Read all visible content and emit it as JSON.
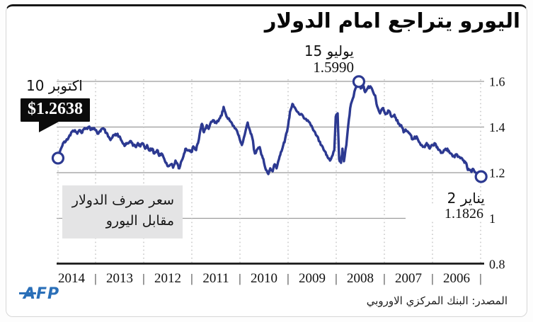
{
  "title": "اليورو يتراجع امام الدولار",
  "source": "المصدر: البنك المركزي الاوروبي",
  "logo": "AFP",
  "annotations": {
    "peak": {
      "date_label": "15 يوليو",
      "value_label": "1.5990"
    },
    "october": {
      "date_label": "10 اكتوبر",
      "value_label": "$1.2638"
    },
    "january": {
      "date_label": "2 يناير",
      "value_label": "1.1826"
    },
    "series_label_line1": "سعر صرف الدولار",
    "series_label_line2": "مقابل اليورو"
  },
  "colors": {
    "line": "#2c3991",
    "grid": "#9b9b9b",
    "dash": "#bdbdbd",
    "axis": "#191919",
    "callout_bg": "#0b0b0b",
    "label_box_bg": "#e4e4e5",
    "logo_blue": "#2a6fb8"
  },
  "chart_data": {
    "type": "line",
    "title": "اليورو يتراجع امام الدولار",
    "series_name": "EUR/USD exchange rate",
    "x_axis": {
      "direction": "reversed_time_right_to_older",
      "year_labels": [
        "2014",
        "2013",
        "2012",
        "2011",
        "2010",
        "2009",
        "2008",
        "2007",
        "2006"
      ]
    },
    "y_axis": {
      "ticks": [
        {
          "v": 1.6,
          "label": "1.6"
        },
        {
          "v": 1.4,
          "label": "1.4"
        },
        {
          "v": 1.2,
          "label": "1.2"
        },
        {
          "v": 1.0,
          "label": "1"
        },
        {
          "v": 0.8,
          "label": "0.8"
        }
      ],
      "range": [
        0.8,
        1.65
      ],
      "grid": true
    },
    "grid_dash_dates": [
      2014.78,
      2014,
      2013,
      2012,
      2011,
      2010,
      2009,
      2008,
      2007,
      2006
    ],
    "markers": [
      {
        "date": 2014.78,
        "rate": 1.2638
      },
      {
        "date": 2008.53,
        "rate": 1.599
      },
      {
        "date": 2005.99,
        "rate": 1.1826
      }
    ],
    "points": [
      [
        2014.78,
        1.2638
      ],
      [
        2014.74,
        1.293
      ],
      [
        2014.69,
        1.318
      ],
      [
        2014.65,
        1.336
      ],
      [
        2014.6,
        1.346
      ],
      [
        2014.54,
        1.364
      ],
      [
        2014.49,
        1.38
      ],
      [
        2014.43,
        1.386
      ],
      [
        2014.38,
        1.371
      ],
      [
        2014.34,
        1.386
      ],
      [
        2014.29,
        1.374
      ],
      [
        2014.25,
        1.389
      ],
      [
        2014.19,
        1.395
      ],
      [
        2014.13,
        1.402
      ],
      [
        2014.09,
        1.389
      ],
      [
        2014.04,
        1.395
      ],
      [
        2014.0,
        1.386
      ],
      [
        2013.96,
        1.371
      ],
      [
        2013.91,
        1.383
      ],
      [
        2013.87,
        1.392
      ],
      [
        2013.82,
        1.389
      ],
      [
        2013.78,
        1.374
      ],
      [
        2013.74,
        1.358
      ],
      [
        2013.69,
        1.343
      ],
      [
        2013.65,
        1.355
      ],
      [
        2013.6,
        1.364
      ],
      [
        2013.56,
        1.367
      ],
      [
        2013.51,
        1.358
      ],
      [
        2013.47,
        1.343
      ],
      [
        2013.43,
        1.327
      ],
      [
        2013.38,
        1.321
      ],
      [
        2013.34,
        1.33
      ],
      [
        2013.29,
        1.336
      ],
      [
        2013.25,
        1.33
      ],
      [
        2013.21,
        1.321
      ],
      [
        2013.16,
        1.312
      ],
      [
        2013.12,
        1.33
      ],
      [
        2013.07,
        1.315
      ],
      [
        2013.01,
        1.327
      ],
      [
        2012.97,
        1.305
      ],
      [
        2012.93,
        1.321
      ],
      [
        2012.87,
        1.296
      ],
      [
        2012.82,
        1.305
      ],
      [
        2012.78,
        1.284
      ],
      [
        2012.72,
        1.299
      ],
      [
        2012.68,
        1.274
      ],
      [
        2012.63,
        1.284
      ],
      [
        2012.57,
        1.259
      ],
      [
        2012.53,
        1.243
      ],
      [
        2012.49,
        1.228
      ],
      [
        2012.43,
        1.237
      ],
      [
        2012.39,
        1.222
      ],
      [
        2012.34,
        1.253
      ],
      [
        2012.28,
        1.228
      ],
      [
        2012.26,
        1.219
      ],
      [
        2012.21,
        1.253
      ],
      [
        2012.16,
        1.284
      ],
      [
        2012.12,
        1.305
      ],
      [
        2012.06,
        1.299
      ],
      [
        2012.01,
        1.29
      ],
      [
        2011.97,
        1.315
      ],
      [
        2011.91,
        1.299
      ],
      [
        2011.87,
        1.33
      ],
      [
        2011.82,
        1.389
      ],
      [
        2011.79,
        1.414
      ],
      [
        2011.75,
        1.377
      ],
      [
        2011.69,
        1.408
      ],
      [
        2011.65,
        1.392
      ],
      [
        2011.6,
        1.423
      ],
      [
        2011.54,
        1.429
      ],
      [
        2011.49,
        1.417
      ],
      [
        2011.43,
        1.436
      ],
      [
        2011.38,
        1.451
      ],
      [
        2011.34,
        1.488
      ],
      [
        2011.29,
        1.454
      ],
      [
        2011.25,
        1.436
      ],
      [
        2011.19,
        1.423
      ],
      [
        2011.13,
        1.405
      ],
      [
        2011.06,
        1.383
      ],
      [
        2011.0,
        1.343
      ],
      [
        2010.96,
        1.321
      ],
      [
        2010.9,
        1.367
      ],
      [
        2010.84,
        1.42
      ],
      [
        2010.79,
        1.383
      ],
      [
        2010.75,
        1.358
      ],
      [
        2010.69,
        1.284
      ],
      [
        2010.63,
        1.305
      ],
      [
        2010.59,
        1.312
      ],
      [
        2010.54,
        1.274
      ],
      [
        2010.5,
        1.243
      ],
      [
        2010.46,
        1.212
      ],
      [
        2010.41,
        1.194
      ],
      [
        2010.37,
        1.219
      ],
      [
        2010.32,
        1.206
      ],
      [
        2010.28,
        1.237
      ],
      [
        2010.24,
        1.219
      ],
      [
        2010.19,
        1.259
      ],
      [
        2010.15,
        1.29
      ],
      [
        2010.1,
        1.321
      ],
      [
        2010.06,
        1.349
      ],
      [
        2010.0,
        1.405
      ],
      [
        2009.96,
        1.467
      ],
      [
        2009.91,
        1.501
      ],
      [
        2009.87,
        1.488
      ],
      [
        2009.81,
        1.467
      ],
      [
        2009.75,
        1.454
      ],
      [
        2009.69,
        1.448
      ],
      [
        2009.63,
        1.436
      ],
      [
        2009.57,
        1.423
      ],
      [
        2009.51,
        1.405
      ],
      [
        2009.46,
        1.383
      ],
      [
        2009.4,
        1.361
      ],
      [
        2009.34,
        1.336
      ],
      [
        2009.28,
        1.312
      ],
      [
        2009.22,
        1.29
      ],
      [
        2009.18,
        1.268
      ],
      [
        2009.13,
        1.253
      ],
      [
        2009.09,
        1.271
      ],
      [
        2009.04,
        1.299
      ],
      [
        2009.01,
        1.445
      ],
      [
        2008.97,
        1.46
      ],
      [
        2008.94,
        1.259
      ],
      [
        2008.9,
        1.243
      ],
      [
        2008.87,
        1.305
      ],
      [
        2008.84,
        1.25
      ],
      [
        2008.79,
        1.321
      ],
      [
        2008.75,
        1.408
      ],
      [
        2008.71,
        1.482
      ],
      [
        2008.66,
        1.522
      ],
      [
        2008.6,
        1.569
      ],
      [
        2008.56,
        1.591
      ],
      [
        2008.53,
        1.599
      ],
      [
        2008.49,
        1.569
      ],
      [
        2008.44,
        1.581
      ],
      [
        2008.4,
        1.553
      ],
      [
        2008.35,
        1.569
      ],
      [
        2008.29,
        1.578
      ],
      [
        2008.25,
        1.563
      ],
      [
        2008.19,
        1.538
      ],
      [
        2008.15,
        1.491
      ],
      [
        2008.09,
        1.46
      ],
      [
        2008.04,
        1.482
      ],
      [
        2008.0,
        1.467
      ],
      [
        2007.96,
        1.46
      ],
      [
        2007.9,
        1.47
      ],
      [
        2007.85,
        1.445
      ],
      [
        2007.79,
        1.454
      ],
      [
        2007.75,
        1.429
      ],
      [
        2007.69,
        1.414
      ],
      [
        2007.65,
        1.408
      ],
      [
        2007.6,
        1.377
      ],
      [
        2007.56,
        1.389
      ],
      [
        2007.5,
        1.377
      ],
      [
        2007.46,
        1.367
      ],
      [
        2007.41,
        1.346
      ],
      [
        2007.37,
        1.358
      ],
      [
        2007.31,
        1.349
      ],
      [
        2007.26,
        1.33
      ],
      [
        2007.22,
        1.321
      ],
      [
        2007.16,
        1.312
      ],
      [
        2007.12,
        1.33
      ],
      [
        2007.07,
        1.308
      ],
      [
        2007.03,
        1.318
      ],
      [
        2006.99,
        1.321
      ],
      [
        2006.94,
        1.327
      ],
      [
        2006.9,
        1.312
      ],
      [
        2006.84,
        1.296
      ],
      [
        2006.79,
        1.287
      ],
      [
        2006.75,
        1.299
      ],
      [
        2006.69,
        1.305
      ],
      [
        2006.65,
        1.29
      ],
      [
        2006.6,
        1.281
      ],
      [
        2006.54,
        1.268
      ],
      [
        2006.5,
        1.281
      ],
      [
        2006.46,
        1.271
      ],
      [
        2006.4,
        1.265
      ],
      [
        2006.35,
        1.253
      ],
      [
        2006.31,
        1.243
      ],
      [
        2006.28,
        1.222
      ],
      [
        2006.24,
        1.212
      ],
      [
        2006.19,
        1.203
      ],
      [
        2006.15,
        1.215
      ],
      [
        2006.1,
        1.2
      ],
      [
        2006.06,
        1.19
      ],
      [
        2006.02,
        1.178
      ],
      [
        2005.99,
        1.1826
      ]
    ]
  }
}
